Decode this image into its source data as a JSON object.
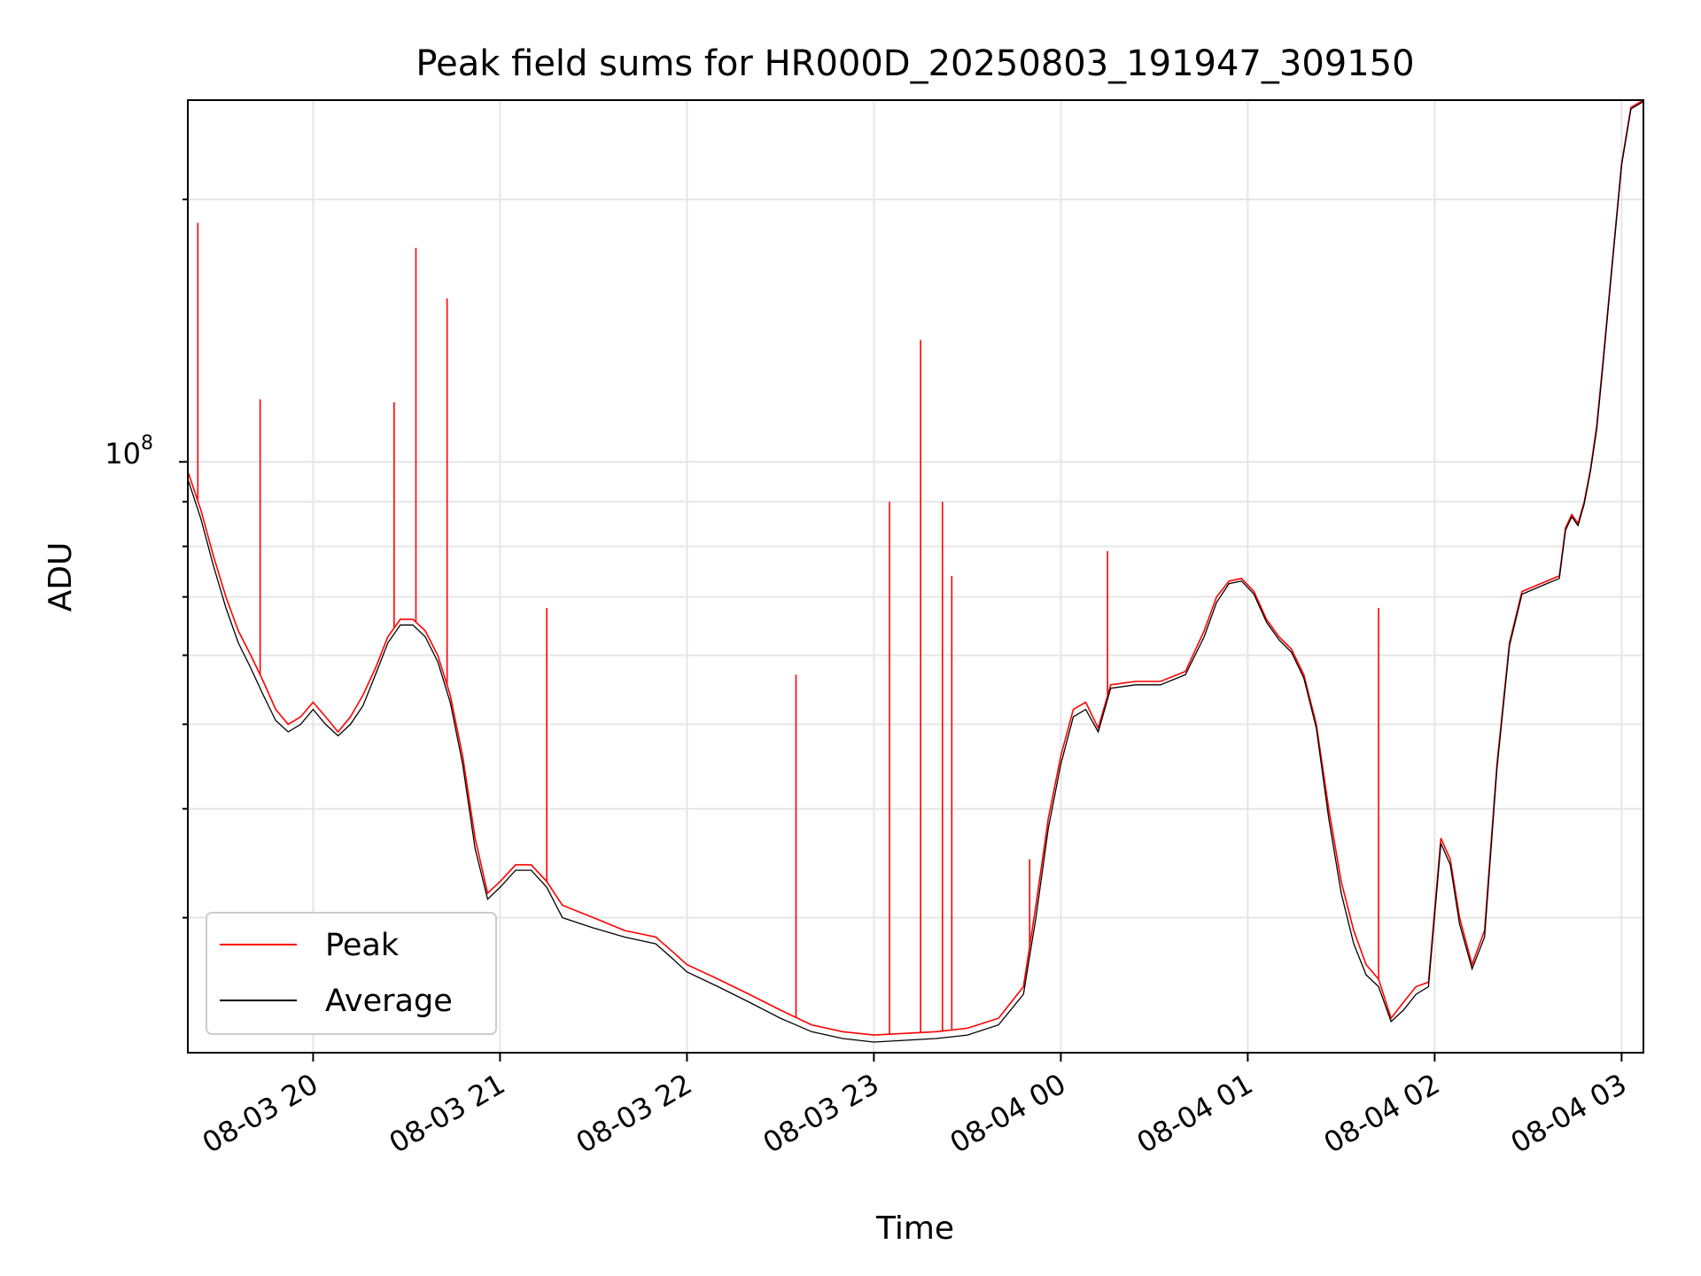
{
  "chart_data": {
    "type": "line",
    "title": "Peak field sums for HR000D_20250803_191947_309150",
    "xlabel": "Time",
    "ylabel": "ADU",
    "y_scale": "log",
    "y_tick_label": "10^8",
    "y_tick_base": "10",
    "y_tick_exp": "8",
    "x_ticks": [
      "08-03 20",
      "08-03 21",
      "08-03 22",
      "08-03 23",
      "08-04 00",
      "08-04 01",
      "08-04 02",
      "08-04 03"
    ],
    "x_tick_times": [
      "2025-08-03 20:00",
      "2025-08-03 21:00",
      "2025-08-03 22:00",
      "2025-08-03 23:00",
      "2025-08-04 00:00",
      "2025-08-04 01:00",
      "2025-08-04 02:00",
      "2025-08-04 03:00"
    ],
    "xlim": [
      "2025-08-03 19:19:47",
      "2025-08-04 03:07"
    ],
    "ylim": [
      21000000,
      260000000
    ],
    "grid": true,
    "legend_position": "lower-left",
    "series": [
      {
        "name": "Peak",
        "color": "#ff0000",
        "points": [
          [
            "2025-08-03 19:20",
            97000000
          ],
          [
            "2025-08-03 19:24",
            88000000
          ],
          [
            "2025-08-03 19:28",
            78000000
          ],
          [
            "2025-08-03 19:32",
            70000000
          ],
          [
            "2025-08-03 19:36",
            64000000
          ],
          [
            "2025-08-03 19:40",
            60000000
          ],
          [
            "2025-08-03 19:44",
            56000000
          ],
          [
            "2025-08-03 19:48",
            52000000
          ],
          [
            "2025-08-03 19:52",
            50000000
          ],
          [
            "2025-08-03 19:56",
            51000000
          ],
          [
            "2025-08-03 20:00",
            53000000
          ],
          [
            "2025-08-03 20:04",
            51000000
          ],
          [
            "2025-08-03 20:08",
            49000000
          ],
          [
            "2025-08-03 20:12",
            51000000
          ],
          [
            "2025-08-03 20:16",
            54000000
          ],
          [
            "2025-08-03 20:20",
            58000000
          ],
          [
            "2025-08-03 20:24",
            63000000
          ],
          [
            "2025-08-03 20:28",
            66000000
          ],
          [
            "2025-08-03 20:32",
            66000000
          ],
          [
            "2025-08-03 20:36",
            64000000
          ],
          [
            "2025-08-03 20:40",
            60000000
          ],
          [
            "2025-08-03 20:44",
            54000000
          ],
          [
            "2025-08-03 20:48",
            46000000
          ],
          [
            "2025-08-03 20:52",
            37000000
          ],
          [
            "2025-08-03 20:56",
            32000000
          ],
          [
            "2025-08-03 21:00",
            33000000
          ],
          [
            "2025-08-03 21:05",
            34500000
          ],
          [
            "2025-08-03 21:10",
            34500000
          ],
          [
            "2025-08-03 21:15",
            33000000
          ],
          [
            "2025-08-03 21:20",
            31000000
          ],
          [
            "2025-08-03 21:30",
            30000000
          ],
          [
            "2025-08-03 21:40",
            29000000
          ],
          [
            "2025-08-03 21:50",
            28500000
          ],
          [
            "2025-08-03 21:55",
            27500000
          ],
          [
            "2025-08-03 22:00",
            26500000
          ],
          [
            "2025-08-03 22:10",
            25500000
          ],
          [
            "2025-08-03 22:20",
            24500000
          ],
          [
            "2025-08-03 22:30",
            23500000
          ],
          [
            "2025-08-03 22:40",
            22600000
          ],
          [
            "2025-08-03 22:50",
            22200000
          ],
          [
            "2025-08-03 23:00",
            22000000
          ],
          [
            "2025-08-03 23:10",
            22100000
          ],
          [
            "2025-08-03 23:20",
            22200000
          ],
          [
            "2025-08-03 23:30",
            22400000
          ],
          [
            "2025-08-03 23:40",
            23000000
          ],
          [
            "2025-08-03 23:48",
            25000000
          ],
          [
            "2025-08-03 23:52",
            31000000
          ],
          [
            "2025-08-03 23:56",
            39000000
          ],
          [
            "2025-08-04 00:00",
            46000000
          ],
          [
            "2025-08-04 00:04",
            52000000
          ],
          [
            "2025-08-04 00:08",
            53000000
          ],
          [
            "2025-08-04 00:12",
            49500000
          ],
          [
            "2025-08-04 00:16",
            55500000
          ],
          [
            "2025-08-04 00:24",
            56000000
          ],
          [
            "2025-08-04 00:32",
            56000000
          ],
          [
            "2025-08-04 00:40",
            57500000
          ],
          [
            "2025-08-04 00:46",
            64000000
          ],
          [
            "2025-08-04 00:50",
            70000000
          ],
          [
            "2025-08-04 00:54",
            73000000
          ],
          [
            "2025-08-04 00:58",
            73500000
          ],
          [
            "2025-08-04 01:02",
            71000000
          ],
          [
            "2025-08-04 01:06",
            66000000
          ],
          [
            "2025-08-04 01:10",
            63000000
          ],
          [
            "2025-08-04 01:14",
            61000000
          ],
          [
            "2025-08-04 01:18",
            57000000
          ],
          [
            "2025-08-04 01:22",
            50000000
          ],
          [
            "2025-08-04 01:26",
            40000000
          ],
          [
            "2025-08-04 01:30",
            33000000
          ],
          [
            "2025-08-04 01:34",
            29000000
          ],
          [
            "2025-08-04 01:38",
            26500000
          ],
          [
            "2025-08-04 01:42",
            25500000
          ],
          [
            "2025-08-04 01:46",
            23000000
          ],
          [
            "2025-08-04 01:50",
            24000000
          ],
          [
            "2025-08-04 01:54",
            25000000
          ],
          [
            "2025-08-04 01:58",
            25300000
          ],
          [
            "2025-08-04 02:02",
            37000000
          ],
          [
            "2025-08-04 02:05",
            35000000
          ],
          [
            "2025-08-04 02:08",
            30000000
          ],
          [
            "2025-08-04 02:12",
            26500000
          ],
          [
            "2025-08-04 02:16",
            29000000
          ],
          [
            "2025-08-04 02:20",
            45000000
          ],
          [
            "2025-08-04 02:24",
            62000000
          ],
          [
            "2025-08-04 02:28",
            71000000
          ],
          [
            "2025-08-04 02:32",
            72000000
          ],
          [
            "2025-08-04 02:36",
            73000000
          ],
          [
            "2025-08-04 02:40",
            74000000
          ],
          [
            "2025-08-04 02:42",
            84000000
          ],
          [
            "2025-08-04 02:44",
            87000000
          ],
          [
            "2025-08-04 02:46",
            85000000
          ],
          [
            "2025-08-04 02:48",
            90000000
          ],
          [
            "2025-08-04 02:50",
            98000000
          ],
          [
            "2025-08-04 02:52",
            110000000
          ],
          [
            "2025-08-04 02:54",
            130000000
          ],
          [
            "2025-08-04 02:56",
            155000000
          ],
          [
            "2025-08-04 02:58",
            185000000
          ],
          [
            "2025-08-04 03:00",
            220000000
          ],
          [
            "2025-08-04 03:03",
            255000000
          ],
          [
            "2025-08-04 03:07",
            260000000
          ]
        ],
        "spikes": [
          [
            "2025-08-03 19:23",
            188000000
          ],
          [
            "2025-08-03 19:43",
            118000000
          ],
          [
            "2025-08-03 20:33",
            176000000
          ],
          [
            "2025-08-03 20:26",
            117000000
          ],
          [
            "2025-08-03 20:43",
            154000000
          ],
          [
            "2025-08-03 21:15",
            68000000
          ],
          [
            "2025-08-03 22:35",
            57000000
          ],
          [
            "2025-08-03 23:05",
            90000000
          ],
          [
            "2025-08-03 23:15",
            138000000
          ],
          [
            "2025-08-03 23:22",
            90000000
          ],
          [
            "2025-08-03 23:25",
            74000000
          ],
          [
            "2025-08-03 23:50",
            35000000
          ],
          [
            "2025-08-04 00:15",
            79000000
          ],
          [
            "2025-08-04 01:42",
            68000000
          ]
        ]
      },
      {
        "name": "Average",
        "color": "#000000",
        "points": [
          [
            "2025-08-03 19:20",
            95000000
          ],
          [
            "2025-08-03 19:24",
            86000000
          ],
          [
            "2025-08-03 19:28",
            76000000
          ],
          [
            "2025-08-03 19:32",
            68000000
          ],
          [
            "2025-08-03 19:36",
            62000000
          ],
          [
            "2025-08-03 19:40",
            58000000
          ],
          [
            "2025-08-03 19:44",
            54000000
          ],
          [
            "2025-08-03 19:48",
            50500000
          ],
          [
            "2025-08-03 19:52",
            49000000
          ],
          [
            "2025-08-03 19:56",
            50000000
          ],
          [
            "2025-08-03 20:00",
            52000000
          ],
          [
            "2025-08-03 20:04",
            50000000
          ],
          [
            "2025-08-03 20:08",
            48500000
          ],
          [
            "2025-08-03 20:12",
            50000000
          ],
          [
            "2025-08-03 20:16",
            52500000
          ],
          [
            "2025-08-03 20:20",
            57000000
          ],
          [
            "2025-08-03 20:24",
            62000000
          ],
          [
            "2025-08-03 20:28",
            65000000
          ],
          [
            "2025-08-03 20:32",
            65000000
          ],
          [
            "2025-08-03 20:36",
            63000000
          ],
          [
            "2025-08-03 20:40",
            59000000
          ],
          [
            "2025-08-03 20:44",
            53000000
          ],
          [
            "2025-08-03 20:48",
            45000000
          ],
          [
            "2025-08-03 20:52",
            36000000
          ],
          [
            "2025-08-03 20:56",
            31500000
          ],
          [
            "2025-08-03 21:00",
            32500000
          ],
          [
            "2025-08-03 21:05",
            34000000
          ],
          [
            "2025-08-03 21:10",
            34000000
          ],
          [
            "2025-08-03 21:15",
            32500000
          ],
          [
            "2025-08-03 21:20",
            30000000
          ],
          [
            "2025-08-03 21:30",
            29200000
          ],
          [
            "2025-08-03 21:40",
            28500000
          ],
          [
            "2025-08-03 21:50",
            28000000
          ],
          [
            "2025-08-03 21:55",
            27000000
          ],
          [
            "2025-08-03 22:00",
            26000000
          ],
          [
            "2025-08-03 22:10",
            25000000
          ],
          [
            "2025-08-03 22:20",
            24000000
          ],
          [
            "2025-08-03 22:30",
            23000000
          ],
          [
            "2025-08-03 22:40",
            22200000
          ],
          [
            "2025-08-03 22:50",
            21800000
          ],
          [
            "2025-08-03 23:00",
            21600000
          ],
          [
            "2025-08-03 23:10",
            21700000
          ],
          [
            "2025-08-03 23:20",
            21800000
          ],
          [
            "2025-08-03 23:30",
            22000000
          ],
          [
            "2025-08-03 23:40",
            22600000
          ],
          [
            "2025-08-03 23:48",
            24500000
          ],
          [
            "2025-08-03 23:52",
            30000000
          ],
          [
            "2025-08-03 23:56",
            38000000
          ],
          [
            "2025-08-04 00:00",
            45000000
          ],
          [
            "2025-08-04 00:04",
            51000000
          ],
          [
            "2025-08-04 00:08",
            52000000
          ],
          [
            "2025-08-04 00:12",
            49000000
          ],
          [
            "2025-08-04 00:16",
            55000000
          ],
          [
            "2025-08-04 00:24",
            55500000
          ],
          [
            "2025-08-04 00:32",
            55500000
          ],
          [
            "2025-08-04 00:40",
            57000000
          ],
          [
            "2025-08-04 00:46",
            63000000
          ],
          [
            "2025-08-04 00:50",
            69000000
          ],
          [
            "2025-08-04 00:54",
            72500000
          ],
          [
            "2025-08-04 00:58",
            73000000
          ],
          [
            "2025-08-04 01:02",
            70500000
          ],
          [
            "2025-08-04 01:06",
            65500000
          ],
          [
            "2025-08-04 01:10",
            62500000
          ],
          [
            "2025-08-04 01:14",
            60500000
          ],
          [
            "2025-08-04 01:18",
            56500000
          ],
          [
            "2025-08-04 01:22",
            49500000
          ],
          [
            "2025-08-04 01:26",
            39000000
          ],
          [
            "2025-08-04 01:30",
            32000000
          ],
          [
            "2025-08-04 01:34",
            28000000
          ],
          [
            "2025-08-04 01:38",
            25800000
          ],
          [
            "2025-08-04 01:42",
            25000000
          ],
          [
            "2025-08-04 01:46",
            22800000
          ],
          [
            "2025-08-04 01:50",
            23500000
          ],
          [
            "2025-08-04 01:54",
            24500000
          ],
          [
            "2025-08-04 01:58",
            25000000
          ],
          [
            "2025-08-04 02:02",
            36500000
          ],
          [
            "2025-08-04 02:05",
            34500000
          ],
          [
            "2025-08-04 02:08",
            29500000
          ],
          [
            "2025-08-04 02:12",
            26200000
          ],
          [
            "2025-08-04 02:16",
            28500000
          ],
          [
            "2025-08-04 02:20",
            44500000
          ],
          [
            "2025-08-04 02:24",
            61500000
          ],
          [
            "2025-08-04 02:28",
            70500000
          ],
          [
            "2025-08-04 02:32",
            71500000
          ],
          [
            "2025-08-04 02:36",
            72500000
          ],
          [
            "2025-08-04 02:40",
            73500000
          ],
          [
            "2025-08-04 02:42",
            83500000
          ],
          [
            "2025-08-04 02:44",
            86500000
          ],
          [
            "2025-08-04 02:46",
            84500000
          ],
          [
            "2025-08-04 02:48",
            89500000
          ],
          [
            "2025-08-04 02:50",
            97500000
          ],
          [
            "2025-08-04 02:52",
            109000000
          ],
          [
            "2025-08-04 02:54",
            129000000
          ],
          [
            "2025-08-04 02:56",
            154000000
          ],
          [
            "2025-08-04 02:58",
            184000000
          ],
          [
            "2025-08-04 03:00",
            219000000
          ],
          [
            "2025-08-04 03:03",
            254000000
          ],
          [
            "2025-08-04 03:07",
            259000000
          ]
        ]
      }
    ]
  }
}
